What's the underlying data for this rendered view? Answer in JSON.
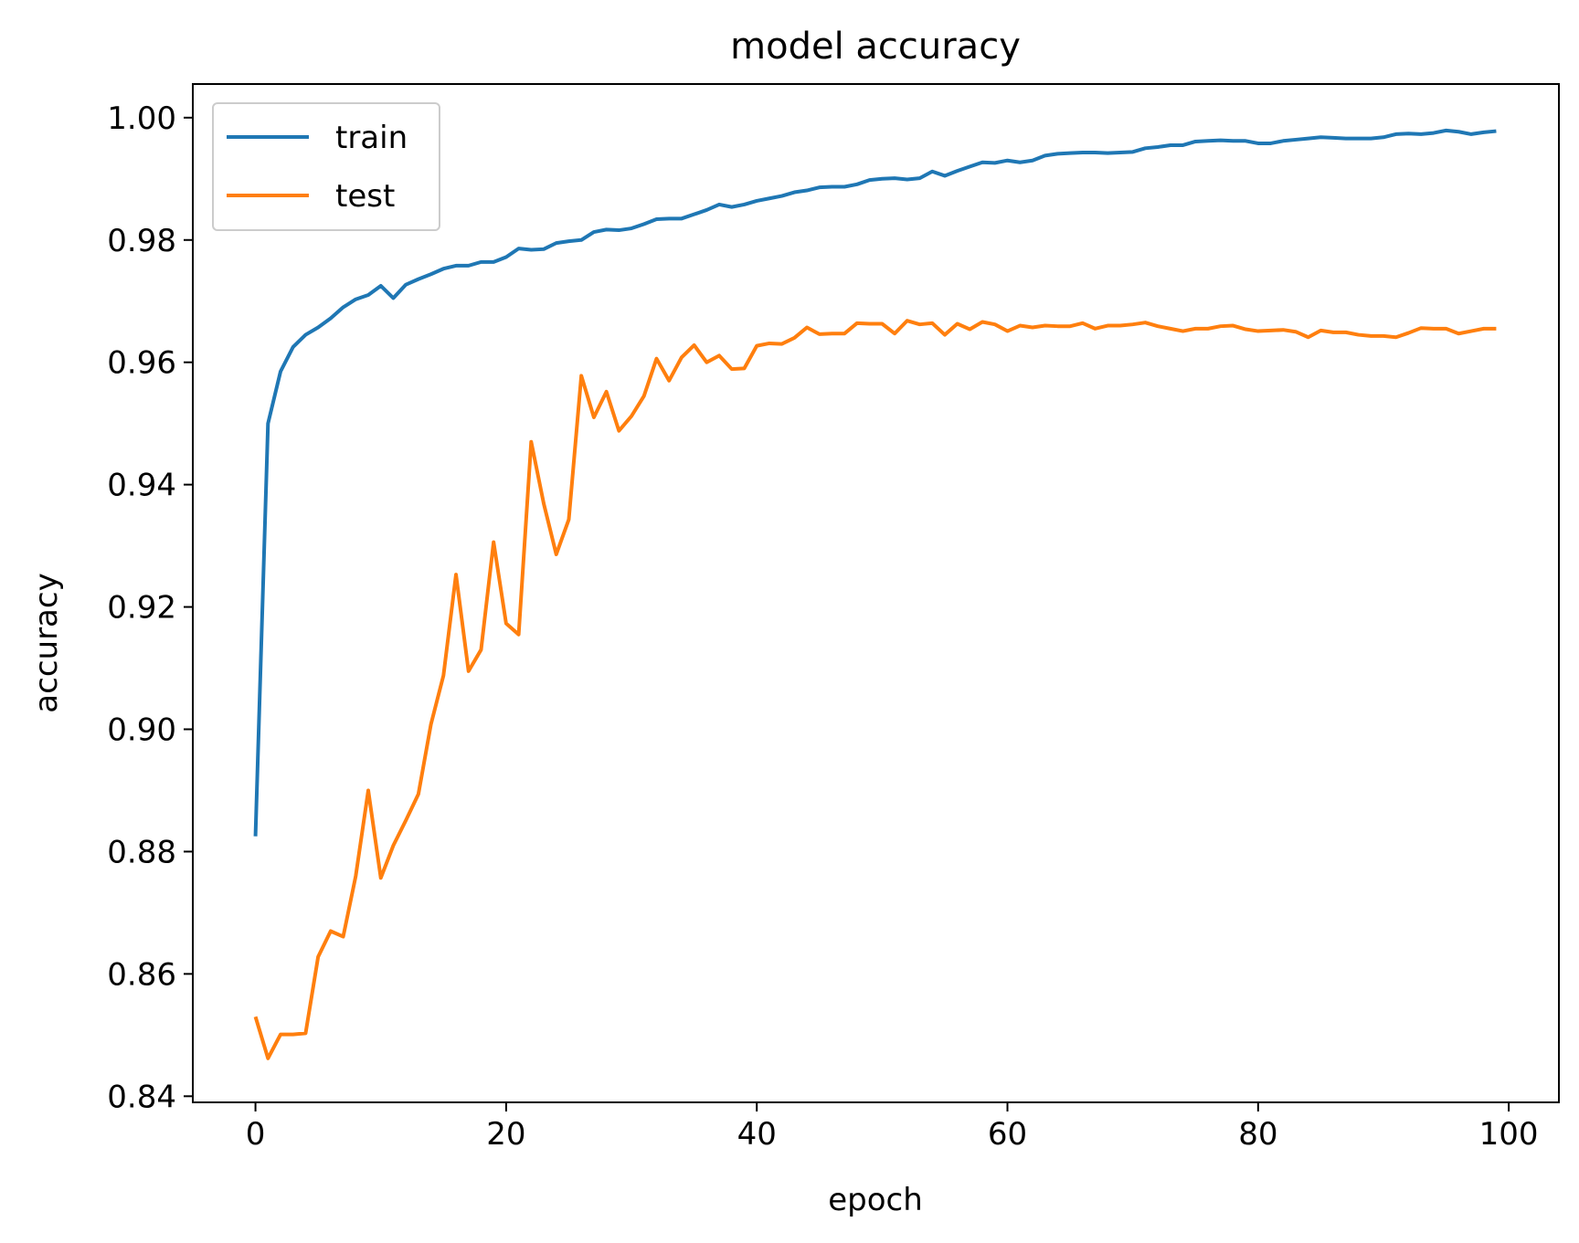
{
  "chart_data": {
    "type": "line",
    "title": "model accuracy",
    "xlabel": "epoch",
    "ylabel": "accuracy",
    "xlim": [
      -5,
      104
    ],
    "ylim": [
      0.839,
      1.0055
    ],
    "xticks": [
      0,
      20,
      40,
      60,
      80,
      100
    ],
    "yticks": [
      0.84,
      0.86,
      0.88,
      0.9,
      0.92,
      0.94,
      0.96,
      0.98,
      1.0
    ],
    "xtick_labels": [
      "0",
      "20",
      "40",
      "60",
      "80",
      "100"
    ],
    "ytick_labels": [
      "0.84",
      "0.86",
      "0.88",
      "0.90",
      "0.92",
      "0.94",
      "0.96",
      "0.98",
      "1.00"
    ],
    "grid": false,
    "legend_position": "upper-left",
    "series": [
      {
        "name": "train",
        "color": "#1f77b4",
        "values": [
          0.8825,
          0.95,
          0.9585,
          0.9625,
          0.9645,
          0.9657,
          0.9672,
          0.969,
          0.9703,
          0.971,
          0.9725,
          0.9705,
          0.9727,
          0.9736,
          0.9744,
          0.9753,
          0.9758,
          0.9758,
          0.9764,
          0.9764,
          0.9772,
          0.9786,
          0.9784,
          0.9785,
          0.9795,
          0.9798,
          0.98,
          0.9813,
          0.9817,
          0.9816,
          0.9819,
          0.9826,
          0.9834,
          0.9835,
          0.9835,
          0.9842,
          0.9849,
          0.9858,
          0.9854,
          0.9858,
          0.9864,
          0.9868,
          0.9872,
          0.9878,
          0.9881,
          0.9886,
          0.9887,
          0.9887,
          0.9891,
          0.9898,
          0.99,
          0.9901,
          0.9899,
          0.9901,
          0.9912,
          0.9905,
          0.9913,
          0.992,
          0.9927,
          0.9926,
          0.993,
          0.9927,
          0.993,
          0.9938,
          0.9941,
          0.9942,
          0.9943,
          0.9943,
          0.9942,
          0.9943,
          0.9944,
          0.995,
          0.9952,
          0.9955,
          0.9955,
          0.9961,
          0.9962,
          0.9963,
          0.9962,
          0.9962,
          0.9958,
          0.9958,
          0.9962,
          0.9964,
          0.9966,
          0.9968,
          0.9967,
          0.9966,
          0.9966,
          0.9966,
          0.9968,
          0.9973,
          0.9974,
          0.9973,
          0.9975,
          0.9979,
          0.9977,
          0.9973,
          0.9976,
          0.9978
        ]
      },
      {
        "name": "test",
        "color": "#ff7f0e",
        "values": [
          0.853,
          0.8462,
          0.8501,
          0.8501,
          0.8503,
          0.8628,
          0.867,
          0.8661,
          0.876,
          0.89,
          0.8757,
          0.881,
          0.8851,
          0.8894,
          0.9008,
          0.9088,
          0.9253,
          0.9095,
          0.913,
          0.9306,
          0.9173,
          0.9155,
          0.947,
          0.9369,
          0.9286,
          0.9343,
          0.9578,
          0.951,
          0.9552,
          0.9488,
          0.9512,
          0.9545,
          0.9606,
          0.957,
          0.9608,
          0.9628,
          0.96,
          0.9611,
          0.9589,
          0.959,
          0.9627,
          0.9631,
          0.963,
          0.964,
          0.9657,
          0.9646,
          0.9647,
          0.9647,
          0.9664,
          0.9663,
          0.9663,
          0.9647,
          0.9668,
          0.9662,
          0.9664,
          0.9645,
          0.9663,
          0.9654,
          0.9666,
          0.9662,
          0.9651,
          0.966,
          0.9657,
          0.966,
          0.9659,
          0.9659,
          0.9664,
          0.9655,
          0.966,
          0.966,
          0.9662,
          0.9665,
          0.9659,
          0.9655,
          0.9651,
          0.9655,
          0.9655,
          0.9659,
          0.966,
          0.9654,
          0.9651,
          0.9652,
          0.9653,
          0.965,
          0.9641,
          0.9652,
          0.9649,
          0.9649,
          0.9645,
          0.9643,
          0.9643,
          0.9641,
          0.9648,
          0.9656,
          0.9655,
          0.9655,
          0.9647,
          0.9651,
          0.9655,
          0.9655
        ]
      }
    ]
  }
}
